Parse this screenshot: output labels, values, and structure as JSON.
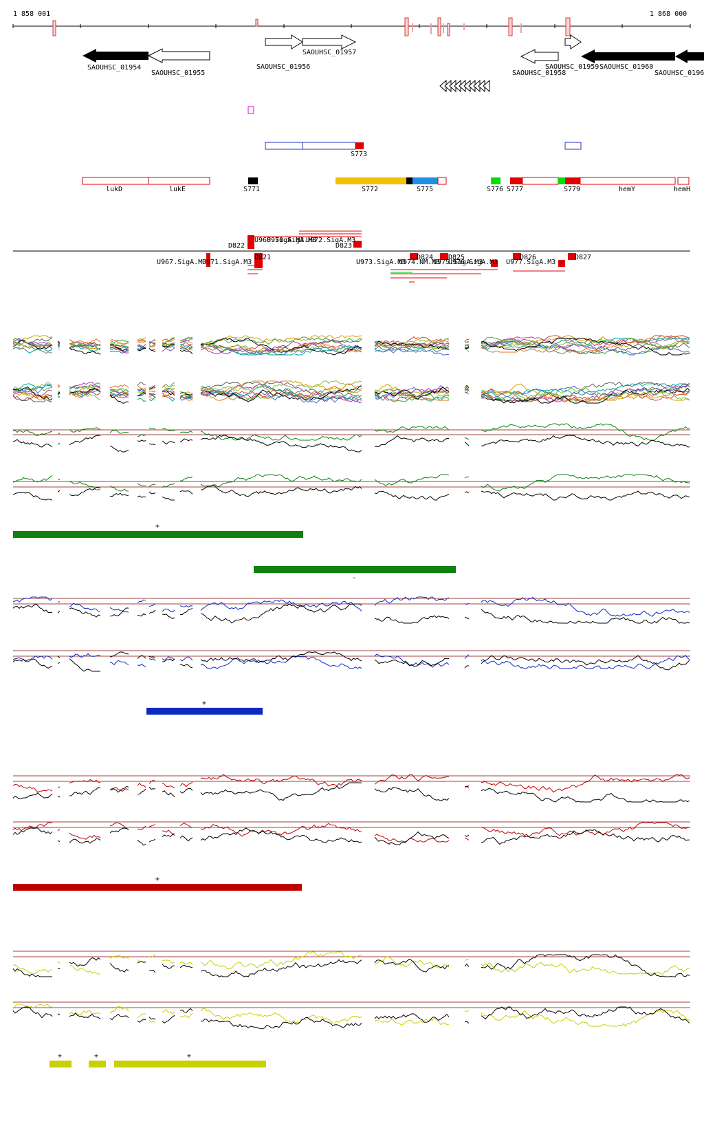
{
  "coords": {
    "start": "1 858 001",
    "end": "1 868 000"
  },
  "genes_top": [
    {
      "label": "SAOUHSC_01954",
      "strand": "-",
      "filled": true
    },
    {
      "label": "SAOUHSC_01955",
      "strand": "-",
      "filled": false
    },
    {
      "label": "SAOUHSC_01956",
      "strand": "+",
      "filled": false
    },
    {
      "label": "SAOUHSC_01957",
      "strand": "+",
      "filled": false
    },
    {
      "label": "SAOUHSC_01958",
      "strand": "-",
      "filled": false
    },
    {
      "label": "SAOUHSC_01959",
      "strand": "+",
      "filled": false
    },
    {
      "label": "SAOUHSC_01960",
      "strand": "-",
      "filled": true
    },
    {
      "label": "SAOUHSC_0196",
      "strand": "-",
      "filled": true
    }
  ],
  "segments_mid": [
    {
      "label": "S773"
    }
  ],
  "segments_row": [
    {
      "label": "lukD"
    },
    {
      "label": "lukE"
    },
    {
      "label": "S771"
    },
    {
      "label": "S772"
    },
    {
      "label": "S775"
    },
    {
      "label": "S776"
    },
    {
      "label": "S777"
    },
    {
      "label": "S779"
    },
    {
      "label": "hemY"
    },
    {
      "label": "hemH"
    }
  ],
  "features": [
    {
      "label": "D822"
    },
    {
      "label": "U968.SigA.M3"
    },
    {
      "label": "U970.SigA.M3"
    },
    {
      "label": "U972.SigA.M3"
    },
    {
      "label": "D823"
    },
    {
      "label": "U967.SigA.M3"
    },
    {
      "label": "U971.SigA.M3"
    },
    {
      "label": "D821"
    },
    {
      "label": "U973.SigA.M3"
    },
    {
      "label": "U974.NM.M3"
    },
    {
      "label": "U975.SigA.M3"
    },
    {
      "label": "U976.SigA.M3"
    },
    {
      "label": "D824"
    },
    {
      "label": "D825"
    },
    {
      "label": "U977.SigA.M3"
    },
    {
      "label": "D826"
    },
    {
      "label": "D827"
    }
  ],
  "strand_marks": [
    "+",
    "-",
    "+",
    "+",
    "+",
    "+",
    "+"
  ],
  "colors": {
    "gene_fill": "#000000",
    "segment_red": "#e00000",
    "segment_orange": "#f5c000",
    "segment_blue": "#2090e0",
    "segment_green": "#00e000",
    "outline_blue": "#2030c0",
    "magenta": "#e000e0",
    "green_track": "#108010",
    "blue_track": "#0a2ac0",
    "red_track": "#c00000",
    "yellow_track": "#c8d000",
    "baseline": "#a04040"
  }
}
